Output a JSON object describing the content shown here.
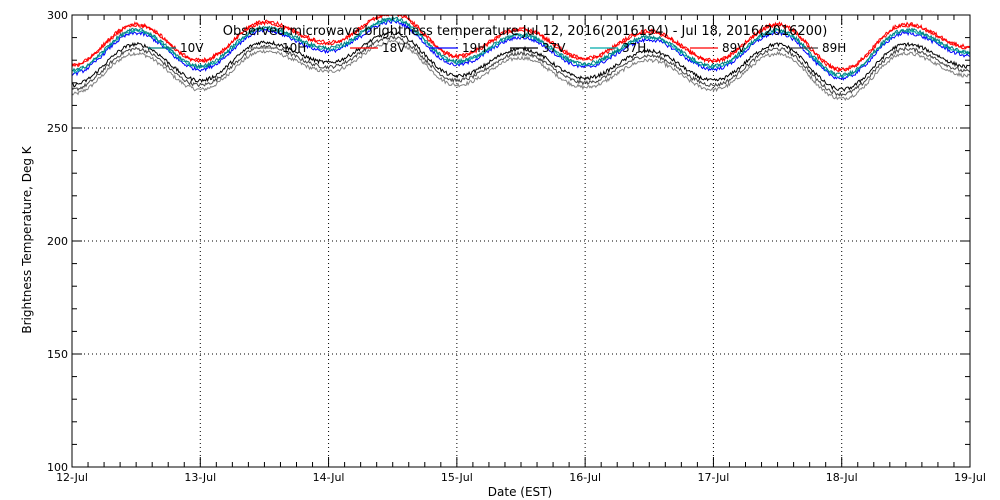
{
  "chart_data": {
    "type": "line",
    "title": "Observed microwave brightness temperature Jul 12, 2016(2016194) - Jul 18, 2016(2016200)",
    "xlabel": "Date (EST)",
    "ylabel": "Brightness Temperature, Deg K",
    "xlim": [
      "2016-07-12",
      "2016-07-19"
    ],
    "ylim": [
      100,
      300
    ],
    "grid": true,
    "legend_placement": "top, inside",
    "x_tick_labels": [
      "12-Jul",
      "13-Jul",
      "14-Jul",
      "15-Jul",
      "16-Jul",
      "17-Jul",
      "18-Jul",
      "19-Jul"
    ],
    "y_tick_labels": [
      "100",
      "150",
      "200",
      "250",
      "300"
    ],
    "series": [
      {
        "name": "10V",
        "color": "#008080"
      },
      {
        "name": "10H",
        "color": "#808080"
      },
      {
        "name": "18V",
        "color": "#ff0000"
      },
      {
        "name": "19H",
        "color": "#0000ff"
      },
      {
        "name": "37V",
        "color": "#000000"
      },
      {
        "name": "37H",
        "color": "#00aaaa"
      },
      {
        "name": "89V",
        "color": "#ff0000"
      },
      {
        "name": "89H",
        "color": "#444444"
      }
    ],
    "daily_profile": {
      "description_units": "Brightness Temperature, Deg K, approximate daily max/min of upper envelope",
      "x": [
        "2016-07-12 00:00",
        "2016-07-12 12:00",
        "2016-07-13 00:00",
        "2016-07-13 12:00",
        "2016-07-14 00:00",
        "2016-07-14 12:00",
        "2016-07-15 00:00",
        "2016-07-15 12:00",
        "2016-07-16 00:00",
        "2016-07-16 12:00",
        "2016-07-17 00:00",
        "2016-07-17 12:00",
        "2016-07-18 00:00",
        "2016-07-18 12:00",
        "2016-07-19 00:00"
      ],
      "y": [
        277,
        295,
        279,
        296,
        287,
        300,
        281,
        293,
        280,
        292,
        279,
        295,
        275,
        295,
        285
      ]
    }
  }
}
